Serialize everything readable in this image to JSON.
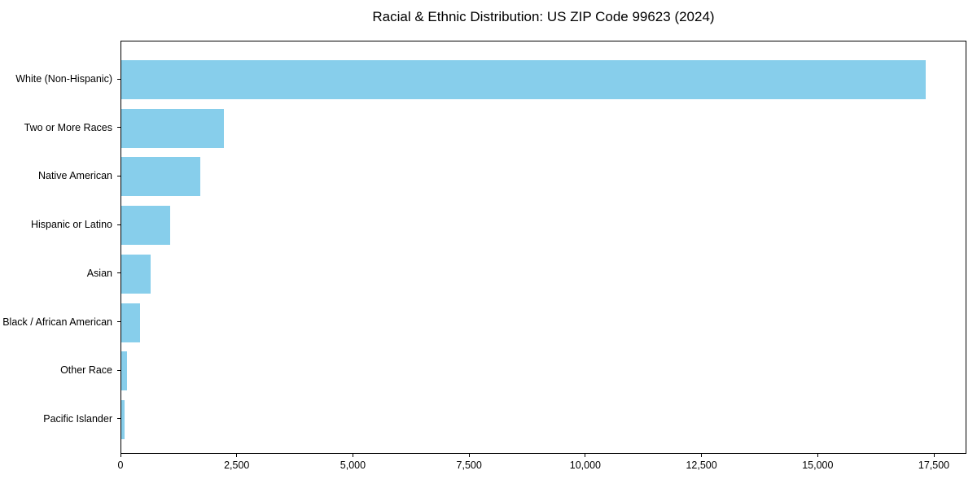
{
  "chart_data": {
    "type": "bar",
    "orientation": "horizontal",
    "title": "Racial & Ethnic Distribution: US ZIP Code 99623 (2024)",
    "categories": [
      "White (Non-Hispanic)",
      "Two or More Races",
      "Native American",
      "Hispanic or Latino",
      "Asian",
      "Black / African American",
      "Other Race",
      "Pacific Islander"
    ],
    "values": [
      17300,
      2200,
      1700,
      1050,
      630,
      400,
      120,
      70
    ],
    "xlabel": "",
    "ylabel": "",
    "xlim": [
      0,
      18200
    ],
    "xticks": [
      0,
      2500,
      5000,
      7500,
      10000,
      12500,
      15000,
      17500
    ],
    "xtick_labels": [
      "0",
      "2,500",
      "5,000",
      "7,500",
      "10,000",
      "12,500",
      "15,000",
      "17,500"
    ],
    "bar_color": "#87CEEB",
    "background_color": "#FFFFFF",
    "spine_color": "#000000",
    "text_color": "#000000",
    "grid": false,
    "legend": null
  }
}
